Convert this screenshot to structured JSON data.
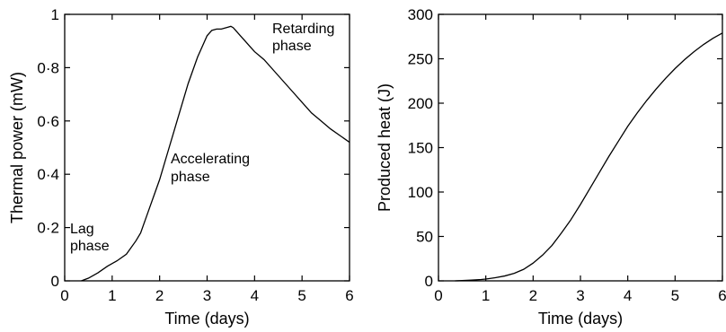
{
  "chart_data": [
    {
      "type": "line",
      "xlabel": "Time (days)",
      "ylabel": "Thermal power (mW)",
      "xlim": [
        0,
        6
      ],
      "ylim": [
        0,
        1
      ],
      "xticks": [
        "0",
        "1",
        "2",
        "3",
        "4",
        "5",
        "6"
      ],
      "yticks": [
        "0",
        "0·2",
        "0·4",
        "0·6",
        "0·8",
        "1"
      ],
      "grid": false,
      "series": [
        {
          "x": [
            0.35,
            0.5,
            0.7,
            0.9,
            1.0,
            1.1,
            1.3,
            1.5,
            1.6,
            1.7,
            1.8,
            1.9,
            2.0,
            2.1,
            2.2,
            2.3,
            2.4,
            2.5,
            2.6,
            2.7,
            2.8,
            2.9,
            3.0,
            3.1,
            3.2,
            3.3,
            3.4,
            3.5,
            3.55,
            3.6,
            3.7,
            3.8,
            3.9,
            4.0,
            4.2,
            4.4,
            4.6,
            4.8,
            5.0,
            5.2,
            5.4,
            5.6,
            5.8,
            6.0
          ],
          "y": [
            0.0,
            0.01,
            0.03,
            0.055,
            0.065,
            0.075,
            0.1,
            0.15,
            0.18,
            0.23,
            0.28,
            0.33,
            0.38,
            0.44,
            0.5,
            0.56,
            0.62,
            0.68,
            0.74,
            0.79,
            0.84,
            0.88,
            0.92,
            0.94,
            0.945,
            0.945,
            0.95,
            0.955,
            0.95,
            0.94,
            0.92,
            0.9,
            0.88,
            0.86,
            0.83,
            0.79,
            0.75,
            0.71,
            0.67,
            0.63,
            0.6,
            0.57,
            0.545,
            0.52
          ]
        }
      ],
      "annotations": [
        {
          "lines": [
            "Lag",
            "phase"
          ]
        },
        {
          "lines": [
            "Accelerating",
            "phase"
          ]
        },
        {
          "lines": [
            "Retarding",
            "phase"
          ]
        }
      ]
    },
    {
      "type": "line",
      "xlabel": "Time (days)",
      "ylabel": "Produced heat (J)",
      "xlim": [
        0,
        6
      ],
      "ylim": [
        0,
        300
      ],
      "xticks": [
        "0",
        "1",
        "2",
        "3",
        "4",
        "5",
        "6"
      ],
      "yticks": [
        "0",
        "50",
        "100",
        "150",
        "200",
        "250",
        "300"
      ],
      "grid": false,
      "series": [
        {
          "x": [
            0.35,
            0.5,
            0.7,
            0.9,
            1.0,
            1.2,
            1.4,
            1.6,
            1.8,
            2.0,
            2.2,
            2.4,
            2.6,
            2.8,
            3.0,
            3.2,
            3.4,
            3.6,
            3.8,
            4.0,
            4.2,
            4.4,
            4.6,
            4.8,
            5.0,
            5.2,
            5.4,
            5.6,
            5.8,
            6.0
          ],
          "y": [
            0.0,
            0.3,
            0.8,
            1.5,
            2.0,
            3.5,
            5.5,
            8.5,
            13,
            20,
            29,
            40,
            54,
            69,
            86,
            104,
            122,
            140,
            157,
            174,
            189,
            203,
            216,
            228,
            239,
            249,
            258,
            266,
            273,
            279
          ]
        }
      ]
    }
  ]
}
